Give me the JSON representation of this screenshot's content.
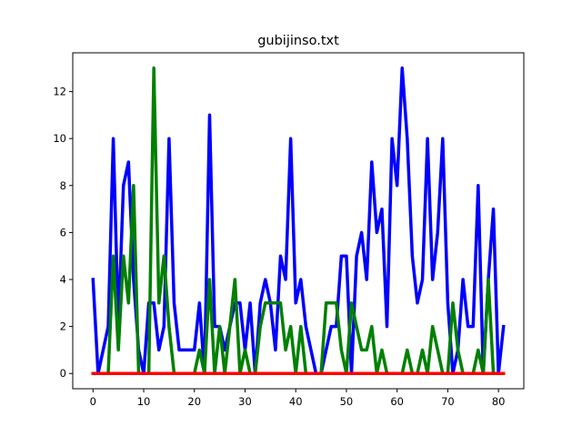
{
  "chart_data": {
    "type": "line",
    "title": "gubijinso.txt",
    "xlabel": "",
    "ylabel": "",
    "xlim": [
      -4,
      85
    ],
    "ylim": [
      -0.65,
      13.65
    ],
    "xticks": [
      0,
      10,
      20,
      30,
      40,
      50,
      60,
      70,
      80
    ],
    "yticks": [
      0,
      2,
      4,
      6,
      8,
      10,
      12
    ],
    "grid": false,
    "colors": {
      "blue": "#0000ff",
      "green": "#008000",
      "red": "#ff0000"
    },
    "series": [
      {
        "color": "#0000ff",
        "x": [
          0,
          1,
          2,
          3,
          4,
          5,
          6,
          7,
          8,
          9,
          10,
          11,
          12,
          13,
          14,
          15,
          16,
          17,
          18,
          19,
          20,
          21,
          22,
          23,
          24,
          25,
          26,
          27,
          28,
          29,
          30,
          31,
          32,
          33,
          34,
          35,
          36,
          37,
          38,
          39,
          40,
          41,
          42,
          43,
          44,
          45,
          46,
          47,
          48,
          49,
          50,
          51,
          52,
          53,
          54,
          55,
          56,
          57,
          58,
          59,
          60,
          61,
          62,
          63,
          64,
          65,
          66,
          67,
          68,
          69,
          70,
          71,
          72,
          73,
          74,
          75,
          76,
          77,
          78,
          79,
          80,
          81
        ],
        "values": [
          4,
          0,
          1,
          2,
          10,
          2,
          8,
          9,
          4,
          1,
          0,
          3,
          3,
          1,
          2,
          10,
          3,
          1,
          1,
          1,
          1,
          3,
          0,
          11,
          2,
          2,
          1,
          2,
          3,
          3,
          1,
          3,
          0,
          3,
          4,
          3,
          1,
          5,
          4,
          10,
          3,
          4,
          2,
          1,
          0,
          0,
          1,
          2,
          2,
          5,
          5,
          0,
          5,
          6,
          4,
          9,
          6,
          7,
          2,
          10,
          8,
          13,
          10,
          5,
          3,
          4,
          10,
          4,
          6,
          10,
          3,
          0,
          1,
          4,
          2,
          2,
          8,
          0,
          4,
          7,
          0,
          2
        ]
      },
      {
        "color": "#008000",
        "x": [
          0,
          1,
          2,
          3,
          4,
          5,
          6,
          7,
          8,
          9,
          10,
          11,
          12,
          13,
          14,
          15,
          16,
          17,
          18,
          19,
          20,
          21,
          22,
          23,
          24,
          25,
          26,
          27,
          28,
          29,
          30,
          31,
          32,
          33,
          34,
          35,
          36,
          37,
          38,
          39,
          40,
          41,
          42,
          43,
          44,
          45,
          46,
          47,
          48,
          49,
          50,
          51,
          52,
          53,
          54,
          55,
          56,
          57,
          58,
          59,
          60,
          61,
          62,
          63,
          64,
          65,
          66,
          67,
          68,
          69,
          70,
          71,
          72,
          73,
          74,
          75,
          76,
          77,
          78,
          79,
          80,
          81
        ],
        "values": [
          0,
          0,
          0,
          0,
          5,
          1,
          5,
          3,
          8,
          0,
          0,
          0,
          13,
          3,
          5,
          2,
          0,
          0,
          0,
          0,
          0,
          1,
          0,
          4,
          0,
          2,
          0,
          2,
          4,
          0,
          1,
          0,
          0,
          2,
          3,
          3,
          3,
          3,
          1,
          2,
          0,
          2,
          0,
          0,
          0,
          0,
          3,
          3,
          3,
          1,
          0,
          3,
          2,
          1,
          1,
          2,
          0,
          1,
          0,
          0,
          0,
          0,
          1,
          0,
          0,
          1,
          0,
          2,
          1,
          0,
          0,
          3,
          1,
          0,
          0,
          0,
          1,
          0,
          4,
          0,
          0,
          0
        ]
      },
      {
        "color": "#ff0000",
        "x": [
          0,
          81
        ],
        "values": [
          0,
          0
        ]
      }
    ]
  }
}
